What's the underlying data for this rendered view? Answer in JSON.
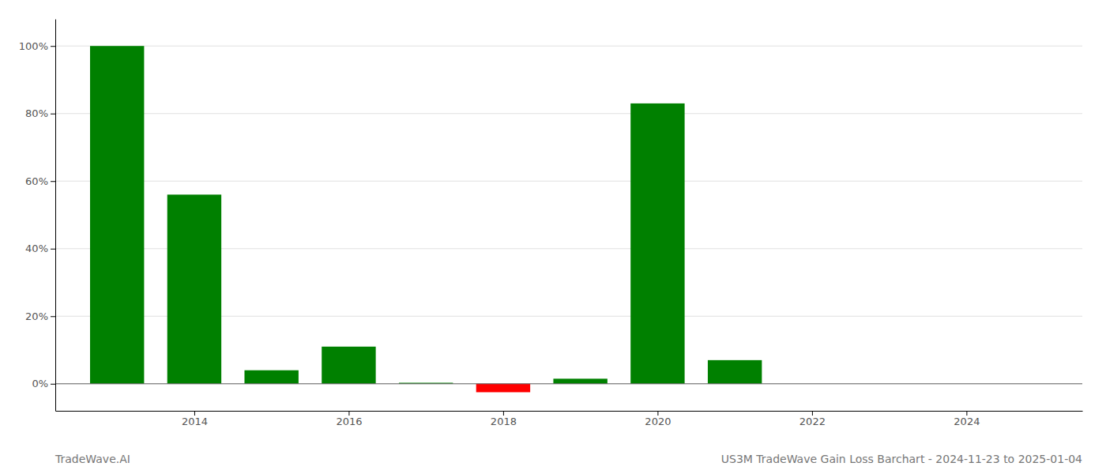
{
  "chart_data": {
    "type": "bar",
    "title": "US3M TradeWave Gain Loss Barchart - 2024-11-23 to 2025-01-04",
    "annotations": [
      "TradeWave.AI"
    ],
    "x": [
      2013,
      2014,
      2015,
      2016,
      2017,
      2018,
      2019,
      2020,
      2021,
      2022,
      2023,
      2024
    ],
    "values": [
      100.0,
      56.0,
      4.0,
      11.0,
      0.3,
      -2.5,
      1.5,
      83.0,
      7.0,
      0.0,
      0.0,
      0.0
    ],
    "colors": [
      "#008000",
      "#008000",
      "#008000",
      "#008000",
      "#008000",
      "#ff0000",
      "#008000",
      "#008000",
      "#008000",
      "#008000",
      "#008000",
      "#008000"
    ],
    "xlim": [
      2012.2,
      2025.5
    ],
    "xticks": [
      2014,
      2016,
      2018,
      2020,
      2022,
      2024
    ],
    "ylim": [
      -8,
      108
    ],
    "yticks": [
      {
        "value": 0,
        "label": "0%"
      },
      {
        "value": 20,
        "label": "20%"
      },
      {
        "value": 40,
        "label": "40%"
      },
      {
        "value": 60,
        "label": "60%"
      },
      {
        "value": 80,
        "label": "80%"
      },
      {
        "value": 100,
        "label": "100%"
      }
    ],
    "grid": true
  }
}
